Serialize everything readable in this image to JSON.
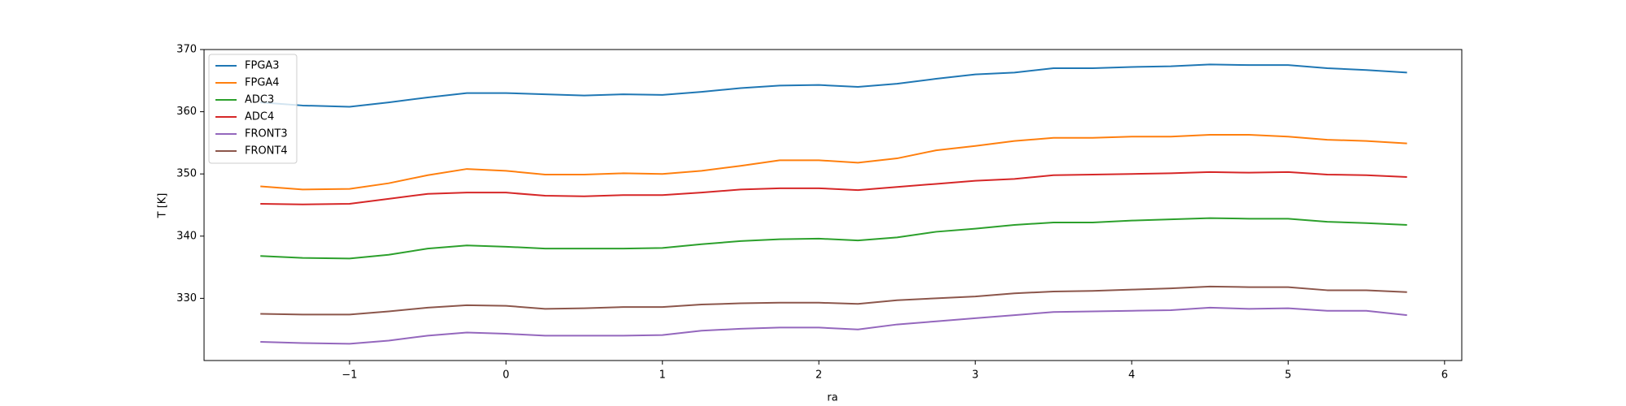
{
  "chart_data": {
    "type": "line",
    "xlabel": "ra",
    "ylabel": "T [K]",
    "xlim": [
      -1.93,
      6.11
    ],
    "ylim": [
      320,
      370
    ],
    "xticks": [
      {
        "value": -1,
        "label": "−1"
      },
      0,
      1,
      2,
      3,
      4,
      5,
      6
    ],
    "yticks": [
      330,
      340,
      350,
      360,
      370
    ],
    "legend": "upper left",
    "x": [
      -1.57,
      -1.3,
      -1.0,
      -0.75,
      -0.5,
      -0.25,
      0,
      0.25,
      0.5,
      0.75,
      1.0,
      1.25,
      1.5,
      1.75,
      2.0,
      2.25,
      2.5,
      2.75,
      3.0,
      3.25,
      3.5,
      3.75,
      4.0,
      4.25,
      4.5,
      4.75,
      5.0,
      5.25,
      5.5,
      5.76
    ],
    "series": [
      {
        "name": "FPGA3",
        "color": "#1f77b4",
        "values": [
          361.5,
          361,
          360.8,
          361.5,
          362.3,
          363,
          363,
          362.8,
          362.6,
          362.8,
          362.7,
          363.2,
          363.8,
          364.2,
          364.3,
          364,
          364.5,
          365.3,
          366,
          366.3,
          367,
          367,
          367.2,
          367.3,
          367.6,
          367.5,
          367.5,
          367,
          366.7,
          366.3
        ]
      },
      {
        "name": "FPGA4",
        "color": "#ff7f0e",
        "values": [
          348,
          347.5,
          347.6,
          348.5,
          349.8,
          350.8,
          350.5,
          349.9,
          349.9,
          350.1,
          350,
          350.5,
          351.3,
          352.2,
          352.2,
          351.8,
          352.5,
          353.8,
          354.5,
          355.3,
          355.8,
          355.8,
          356,
          356,
          356.3,
          356.3,
          356,
          355.5,
          355.3,
          354.9
        ]
      },
      {
        "name": "ADC3",
        "color": "#2ca02c",
        "values": [
          336.8,
          336.5,
          336.4,
          337,
          338,
          338.5,
          338.3,
          338,
          338,
          338,
          338.1,
          338.7,
          339.2,
          339.5,
          339.6,
          339.3,
          339.8,
          340.7,
          341.2,
          341.8,
          342.2,
          342.2,
          342.5,
          342.7,
          342.9,
          342.8,
          342.8,
          342.3,
          342.1,
          341.8
        ]
      },
      {
        "name": "ADC4",
        "color": "#d62728",
        "values": [
          345.2,
          345.1,
          345.2,
          346,
          346.8,
          347,
          347,
          346.5,
          346.4,
          346.6,
          346.6,
          347,
          347.5,
          347.7,
          347.7,
          347.4,
          347.9,
          348.4,
          348.9,
          349.2,
          349.8,
          349.9,
          350,
          350.1,
          350.3,
          350.2,
          350.3,
          349.9,
          349.8,
          349.5
        ]
      },
      {
        "name": "FRONT3",
        "color": "#9467bd",
        "values": [
          323,
          322.8,
          322.7,
          323.2,
          324,
          324.5,
          324.3,
          324,
          324,
          324,
          324.1,
          324.8,
          325.1,
          325.3,
          325.3,
          325,
          325.8,
          326.3,
          326.8,
          327.3,
          327.8,
          327.9,
          328,
          328.1,
          328.5,
          328.3,
          328.4,
          328,
          328,
          327.3
        ]
      },
      {
        "name": "FRONT4",
        "color": "#8c564b",
        "values": [
          327.5,
          327.4,
          327.4,
          327.9,
          328.5,
          328.9,
          328.8,
          328.3,
          328.4,
          328.6,
          328.6,
          329,
          329.2,
          329.3,
          329.3,
          329.1,
          329.7,
          330,
          330.3,
          330.8,
          331.1,
          331.2,
          331.4,
          331.6,
          331.9,
          331.8,
          331.8,
          331.3,
          331.3,
          331
        ]
      }
    ]
  }
}
